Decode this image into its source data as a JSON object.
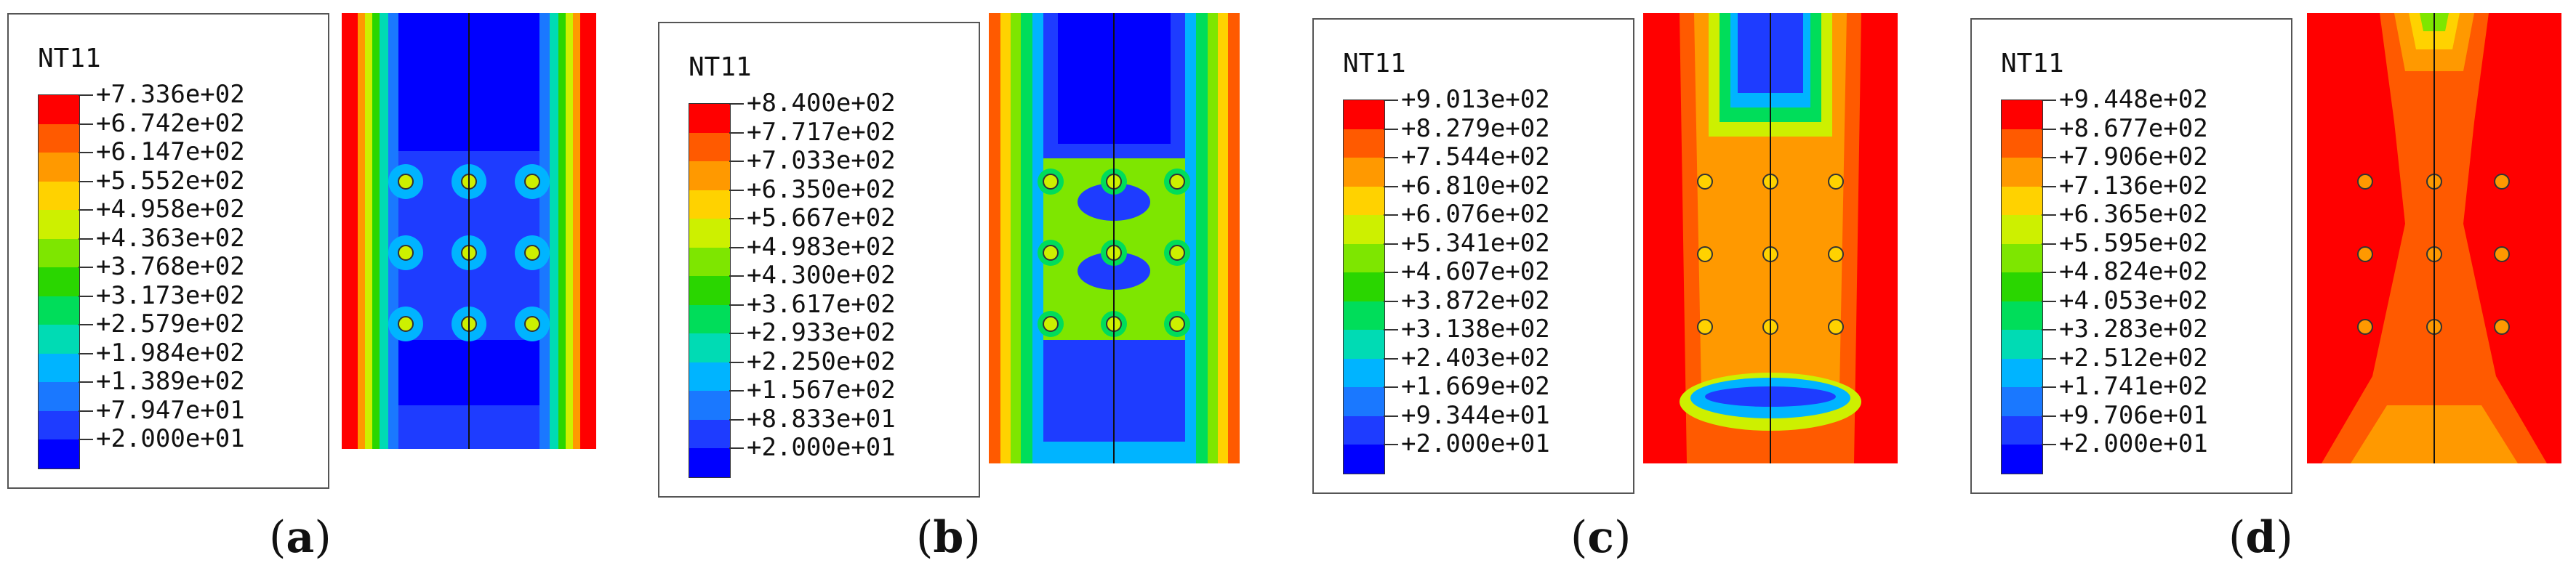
{
  "palette": [
    "#ff0000",
    "#ff5a00",
    "#ff9900",
    "#ffd200",
    "#cdf000",
    "#7ee600",
    "#2ad600",
    "#00dd5a",
    "#00dbb4",
    "#00b4ff",
    "#1a78ff",
    "#1e3cff",
    "#0000ff"
  ],
  "panels": [
    {
      "id": "a",
      "caption": "a",
      "legend_title": "NT11",
      "legend_values": [
        "+7.336e+02",
        "+6.742e+02",
        "+6.147e+02",
        "+5.552e+02",
        "+4.958e+02",
        "+4.363e+02",
        "+3.768e+02",
        "+3.173e+02",
        "+2.579e+02",
        "+1.984e+02",
        "+1.389e+02",
        "+7.947e+01",
        "+2.000e+01"
      ],
      "background_color": "#1e3cff",
      "edge_colors": [
        "#ff0000",
        "#ff9900",
        "#cdf000",
        "#2ad600",
        "#00dbb4",
        "#1a78ff"
      ]
    },
    {
      "id": "b",
      "caption": "b",
      "legend_title": "NT11",
      "legend_values": [
        "+8.400e+02",
        "+7.717e+02",
        "+7.033e+02",
        "+6.350e+02",
        "+5.667e+02",
        "+4.983e+02",
        "+4.300e+02",
        "+3.617e+02",
        "+2.933e+02",
        "+2.250e+02",
        "+1.567e+02",
        "+8.833e+01",
        "+2.000e+01"
      ],
      "background_color": "#1e3cff",
      "edge_colors": [
        "#ff5a00",
        "#ffd200",
        "#7ee600",
        "#00dd5a",
        "#00b4ff"
      ]
    },
    {
      "id": "c",
      "caption": "c",
      "legend_title": "NT11",
      "legend_values": [
        "+9.013e+02",
        "+8.279e+02",
        "+7.544e+02",
        "+6.810e+02",
        "+6.076e+02",
        "+5.341e+02",
        "+4.607e+02",
        "+3.872e+02",
        "+3.138e+02",
        "+2.403e+02",
        "+1.669e+02",
        "+9.344e+01",
        "+2.000e+01"
      ],
      "background_color": "#ff9900",
      "edge_colors": [
        "#ff0000",
        "#ff5a00"
      ]
    },
    {
      "id": "d",
      "caption": "d",
      "legend_title": "NT11",
      "legend_values": [
        "+9.448e+02",
        "+8.677e+02",
        "+7.906e+02",
        "+7.136e+02",
        "+6.365e+02",
        "+5.595e+02",
        "+4.824e+02",
        "+4.053e+02",
        "+3.283e+02",
        "+2.512e+02",
        "+1.741e+02",
        "+9.706e+01",
        "+2.000e+01"
      ],
      "background_color": "#ff5a00",
      "edge_colors": [
        "#ff0000"
      ]
    }
  ]
}
